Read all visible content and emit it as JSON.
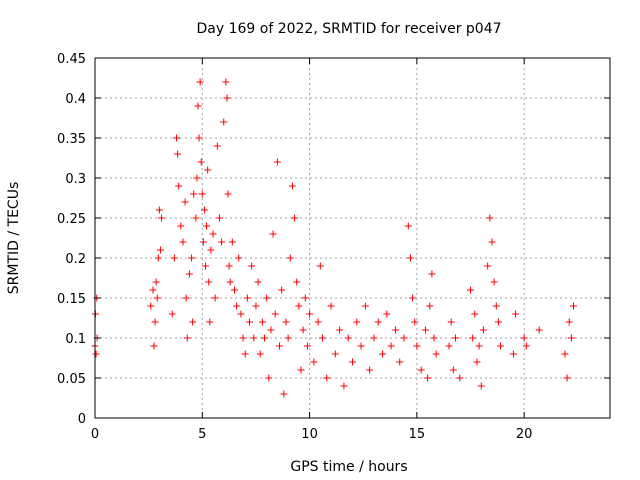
{
  "chart_data": {
    "type": "scatter",
    "title": "Day 169 of 2022, SRMTID for receiver p047",
    "xlabel": "GPS time / hours",
    "ylabel": "SRMTID / TECUs",
    "xlim": [
      0,
      24
    ],
    "ylim": [
      0,
      0.45
    ],
    "xticks": [
      0,
      5,
      10,
      15,
      20
    ],
    "xtick_labels": [
      "0",
      "5",
      "10",
      "15",
      "20"
    ],
    "yticks": [
      0,
      0.05,
      0.1,
      0.15,
      0.2,
      0.25,
      0.3,
      0.35,
      0.4,
      0.45
    ],
    "ytick_labels": [
      "0",
      "0.05",
      "0.1",
      "0.15",
      "0.2",
      "0.25",
      "0.3",
      "0.35",
      "0.4",
      "0.45"
    ],
    "grid": true,
    "marker": "+",
    "color": "#ff0000",
    "series": [
      {
        "name": "SRMTID",
        "points": [
          [
            0.0,
            0.09
          ],
          [
            0.02,
            0.13
          ],
          [
            0.05,
            0.08
          ],
          [
            0.08,
            0.15
          ],
          [
            0.1,
            0.1
          ],
          [
            2.6,
            0.14
          ],
          [
            2.7,
            0.16
          ],
          [
            2.75,
            0.09
          ],
          [
            2.8,
            0.12
          ],
          [
            2.85,
            0.17
          ],
          [
            2.9,
            0.15
          ],
          [
            2.95,
            0.2
          ],
          [
            3.0,
            0.26
          ],
          [
            3.05,
            0.21
          ],
          [
            3.1,
            0.25
          ],
          [
            3.6,
            0.13
          ],
          [
            3.7,
            0.2
          ],
          [
            3.8,
            0.35
          ],
          [
            3.85,
            0.33
          ],
          [
            3.9,
            0.29
          ],
          [
            4.0,
            0.24
          ],
          [
            4.1,
            0.22
          ],
          [
            4.2,
            0.27
          ],
          [
            4.25,
            0.15
          ],
          [
            4.3,
            0.1
          ],
          [
            4.4,
            0.18
          ],
          [
            4.5,
            0.2
          ],
          [
            4.55,
            0.12
          ],
          [
            4.6,
            0.28
          ],
          [
            4.7,
            0.25
          ],
          [
            4.75,
            0.3
          ],
          [
            4.8,
            0.39
          ],
          [
            4.85,
            0.35
          ],
          [
            4.9,
            0.42
          ],
          [
            4.95,
            0.32
          ],
          [
            5.0,
            0.28
          ],
          [
            5.05,
            0.22
          ],
          [
            5.1,
            0.26
          ],
          [
            5.15,
            0.19
          ],
          [
            5.2,
            0.24
          ],
          [
            5.25,
            0.31
          ],
          [
            5.3,
            0.17
          ],
          [
            5.35,
            0.12
          ],
          [
            5.4,
            0.21
          ],
          [
            5.5,
            0.23
          ],
          [
            5.6,
            0.15
          ],
          [
            5.7,
            0.34
          ],
          [
            5.8,
            0.25
          ],
          [
            5.9,
            0.22
          ],
          [
            6.0,
            0.37
          ],
          [
            6.1,
            0.42
          ],
          [
            6.15,
            0.4
          ],
          [
            6.2,
            0.28
          ],
          [
            6.25,
            0.19
          ],
          [
            6.3,
            0.17
          ],
          [
            6.4,
            0.22
          ],
          [
            6.5,
            0.16
          ],
          [
            6.6,
            0.14
          ],
          [
            6.7,
            0.2
          ],
          [
            6.8,
            0.13
          ],
          [
            6.9,
            0.1
          ],
          [
            7.0,
            0.08
          ],
          [
            7.1,
            0.15
          ],
          [
            7.2,
            0.12
          ],
          [
            7.3,
            0.19
          ],
          [
            7.4,
            0.1
          ],
          [
            7.5,
            0.14
          ],
          [
            7.6,
            0.17
          ],
          [
            7.7,
            0.08
          ],
          [
            7.8,
            0.12
          ],
          [
            7.9,
            0.1
          ],
          [
            8.0,
            0.15
          ],
          [
            8.1,
            0.05
          ],
          [
            8.2,
            0.11
          ],
          [
            8.3,
            0.23
          ],
          [
            8.4,
            0.13
          ],
          [
            8.5,
            0.32
          ],
          [
            8.6,
            0.09
          ],
          [
            8.7,
            0.16
          ],
          [
            8.8,
            0.03
          ],
          [
            8.9,
            0.12
          ],
          [
            9.0,
            0.1
          ],
          [
            9.1,
            0.2
          ],
          [
            9.2,
            0.29
          ],
          [
            9.3,
            0.25
          ],
          [
            9.4,
            0.17
          ],
          [
            9.5,
            0.14
          ],
          [
            9.6,
            0.06
          ],
          [
            9.7,
            0.11
          ],
          [
            9.8,
            0.15
          ],
          [
            9.9,
            0.09
          ],
          [
            10.0,
            0.13
          ],
          [
            10.2,
            0.07
          ],
          [
            10.4,
            0.12
          ],
          [
            10.5,
            0.19
          ],
          [
            10.6,
            0.1
          ],
          [
            10.8,
            0.05
          ],
          [
            11.0,
            0.14
          ],
          [
            11.2,
            0.08
          ],
          [
            11.4,
            0.11
          ],
          [
            11.6,
            0.04
          ],
          [
            11.8,
            0.1
          ],
          [
            12.0,
            0.07
          ],
          [
            12.2,
            0.12
          ],
          [
            12.4,
            0.09
          ],
          [
            12.6,
            0.14
          ],
          [
            12.8,
            0.06
          ],
          [
            13.0,
            0.1
          ],
          [
            13.2,
            0.12
          ],
          [
            13.4,
            0.08
          ],
          [
            13.6,
            0.13
          ],
          [
            13.8,
            0.09
          ],
          [
            14.0,
            0.11
          ],
          [
            14.2,
            0.07
          ],
          [
            14.4,
            0.1
          ],
          [
            14.6,
            0.24
          ],
          [
            14.7,
            0.2
          ],
          [
            14.8,
            0.15
          ],
          [
            14.9,
            0.12
          ],
          [
            15.0,
            0.09
          ],
          [
            15.2,
            0.06
          ],
          [
            15.4,
            0.11
          ],
          [
            15.5,
            0.05
          ],
          [
            15.6,
            0.14
          ],
          [
            15.7,
            0.18
          ],
          [
            15.8,
            0.1
          ],
          [
            15.9,
            0.08
          ],
          [
            16.5,
            0.09
          ],
          [
            16.6,
            0.12
          ],
          [
            16.7,
            0.06
          ],
          [
            16.8,
            0.1
          ],
          [
            17.0,
            0.05
          ],
          [
            17.5,
            0.16
          ],
          [
            17.6,
            0.1
          ],
          [
            17.7,
            0.13
          ],
          [
            17.8,
            0.07
          ],
          [
            17.9,
            0.09
          ],
          [
            18.0,
            0.04
          ],
          [
            18.1,
            0.11
          ],
          [
            18.3,
            0.19
          ],
          [
            18.4,
            0.25
          ],
          [
            18.5,
            0.22
          ],
          [
            18.6,
            0.17
          ],
          [
            18.7,
            0.14
          ],
          [
            18.8,
            0.12
          ],
          [
            18.9,
            0.09
          ],
          [
            19.5,
            0.08
          ],
          [
            19.6,
            0.13
          ],
          [
            20.0,
            0.1
          ],
          [
            20.1,
            0.09
          ],
          [
            20.7,
            0.11
          ],
          [
            21.9,
            0.08
          ],
          [
            22.0,
            0.05
          ],
          [
            22.1,
            0.12
          ],
          [
            22.2,
            0.1
          ],
          [
            22.3,
            0.14
          ]
        ]
      }
    ]
  }
}
